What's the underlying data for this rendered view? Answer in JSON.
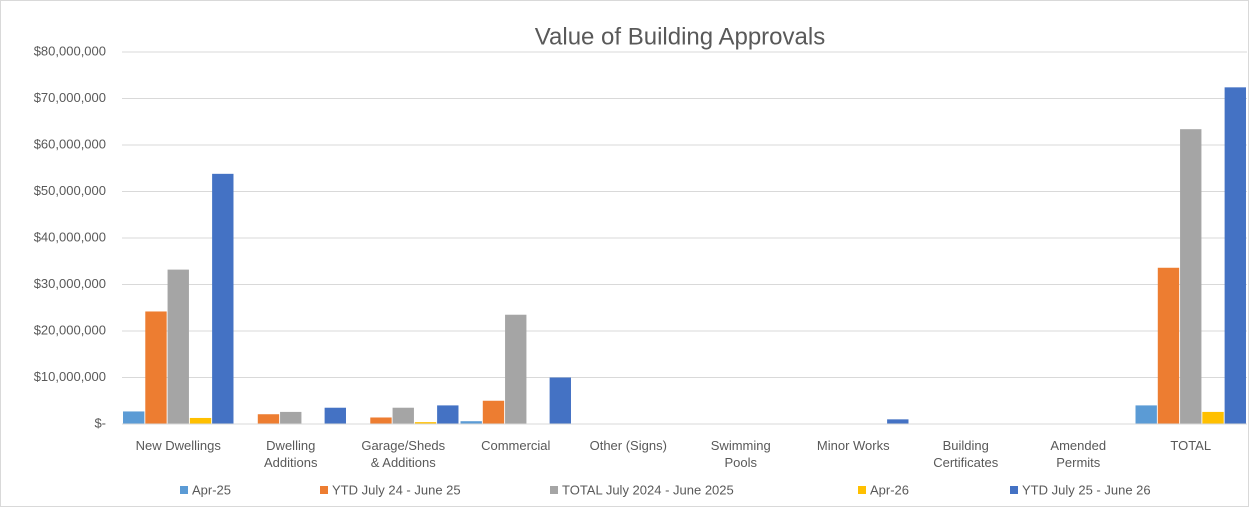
{
  "chart_data": {
    "type": "bar",
    "title": "Value of Building Approvals",
    "categories": [
      "New Dwellings",
      "Dwelling Additions",
      "Garage/Sheds & Additions",
      "Commercial",
      "Other (Signs)",
      "Swimming Pools",
      "Minor Works",
      "Building Certificates",
      "Amended Permits",
      "TOTAL"
    ],
    "series": [
      {
        "name": "Apr-25",
        "color": "#5b9bd5",
        "values": [
          2700000,
          0,
          0,
          600000,
          0,
          0,
          0,
          0,
          0,
          4000000
        ]
      },
      {
        "name": "YTD July 24 - June 25",
        "color": "#ed7d31",
        "values": [
          24200000,
          2100000,
          1400000,
          5000000,
          0,
          0,
          0,
          0,
          0,
          33600000
        ]
      },
      {
        "name": "TOTAL July 2024 - June 2025",
        "color": "#a5a5a5",
        "values": [
          33200000,
          2600000,
          3500000,
          23500000,
          0,
          0,
          0,
          0,
          0,
          63400000
        ]
      },
      {
        "name": "Apr-26",
        "color": "#ffc000",
        "values": [
          1300000,
          0,
          400000,
          0,
          0,
          0,
          0,
          0,
          0,
          2600000
        ]
      },
      {
        "name": "YTD July 25 - June 26",
        "color": "#4472c4",
        "values": [
          53800000,
          3500000,
          4000000,
          10000000,
          0,
          0,
          1000000,
          0,
          0,
          72400000
        ]
      }
    ],
    "ylim": [
      0,
      80000000
    ],
    "yticks": [
      {
        "value": 0,
        "label": "$-"
      },
      {
        "value": 10000000,
        "label": "$10,000,000"
      },
      {
        "value": 20000000,
        "label": "$20,000,000"
      },
      {
        "value": 30000000,
        "label": "$30,000,000"
      },
      {
        "value": 40000000,
        "label": "$40,000,000"
      },
      {
        "value": 50000000,
        "label": "$50,000,000"
      },
      {
        "value": 60000000,
        "label": "$60,000,000"
      },
      {
        "value": 70000000,
        "label": "$70,000,000"
      },
      {
        "value": 80000000,
        "label": "$80,000,000"
      }
    ],
    "grid": true,
    "legend": "bottom"
  }
}
